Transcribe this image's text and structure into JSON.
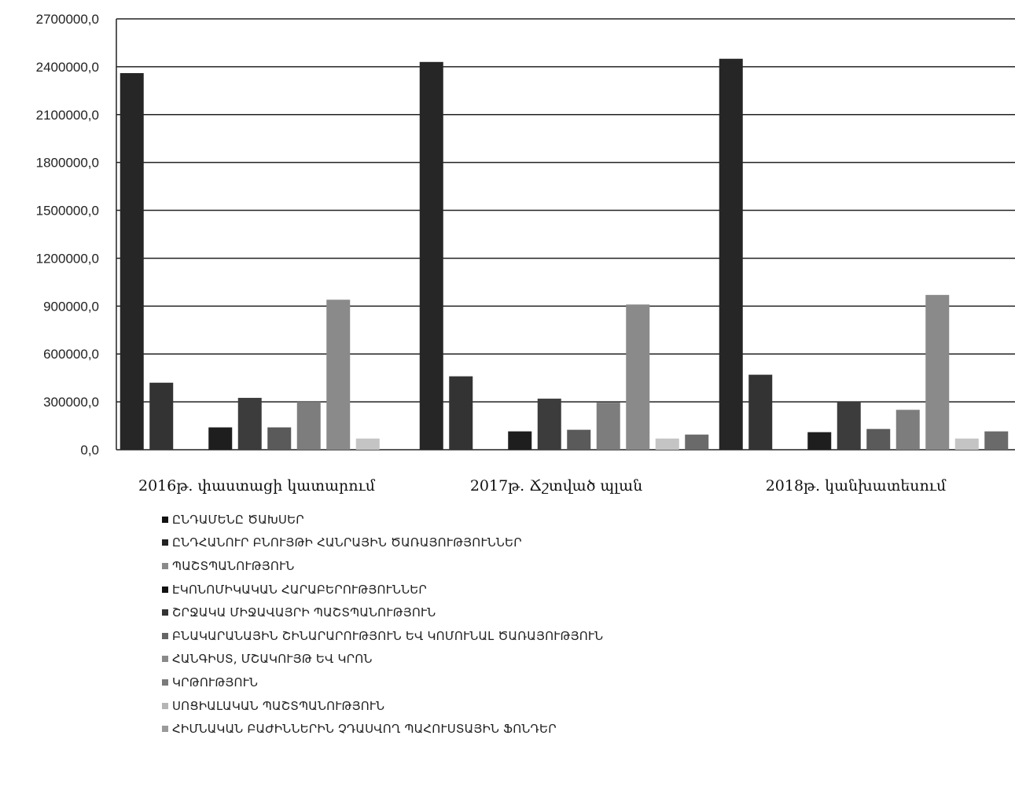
{
  "chart_data": {
    "type": "bar",
    "categories": [
      "2016թ. փաստացի կատարում",
      "2017թ. Ճշտված պլան",
      "2018թ. կանխատեսում"
    ],
    "ylim": [
      0,
      2700000
    ],
    "yticks": [
      "0,0",
      "300000,0",
      "600000,0",
      "900000,0",
      "1200000,0",
      "1500000,0",
      "1800000,0",
      "2100000,0",
      "2400000,0",
      "2700000,0"
    ],
    "grid": true,
    "legend_position": "bottom",
    "series": [
      {
        "name": "ԸՆԴՀԱՆՈՒՐ ԲՆՈՒՅԹԻ ՀԱՆՐԱՅԻՆ ԾԱՌԱՅՈՒԹՅՈՒՆՆԵՐ",
        "color": "#262626",
        "values": [
          2360000,
          2430000,
          2450000
        ]
      },
      {
        "name": "ՊԱՇՏՊԱՆՈՒԹՅՈՒՆ",
        "color": "#333333",
        "values": [
          420000,
          460000,
          470000
        ]
      },
      {
        "name": "ԷԿՈՆՈՄԻԿԱԿԱՆ ՀԱՐԱԲԵՐՈՒԹՅՈՒՆՆԵՐ",
        "color": "#9a9a9a",
        "values": [
          0,
          0,
          0
        ]
      },
      {
        "name": "ՇՐՋԱԿԱ ՄԻՋԱՎԱՅՐԻ ՊԱՇՏՊԱՆՈՒԹՅՈՒՆ",
        "color": "#1e1e1e",
        "values": [
          140000,
          115000,
          110000
        ]
      },
      {
        "name": "ԲՆԱԿԱՐԱՆԱՅԻՆ ՇԻՆԱՐԱՐՈՒԹՅՈՒՆ ԵՎ ԿՈՄՈՒՆԱԼ ԾԱՌԱՅՈՒԹՅՈՒՆ",
        "color": "#3c3c3c",
        "values": [
          325000,
          320000,
          300000
        ]
      },
      {
        "name": "ՀԱՆԳԻՍՏ, ՄՇԱԿՈՒՅԹ ԵՎ ԿՐՈՆ",
        "color": "#5a5a5a",
        "values": [
          140000,
          125000,
          130000
        ]
      },
      {
        "name": "ԿՐԹՈՒԹՅՈՒՆ",
        "color": "#7d7d7d",
        "values": [
          300000,
          295000,
          250000
        ]
      },
      {
        "name": "ՍՈՑԻԱԼԱԿԱՆ ՊԱՇՏՊԱՆՈՒԹՅՈՒՆ",
        "color": "#8a8a8a",
        "values": [
          940000,
          910000,
          970000
        ]
      },
      {
        "name": "ՀԻՄՆԱԿԱՆ ԲԱԺԻՆՆԵՐԻՆ ՉԴԱՍՎՈՂ ՊԱՀՈՒՍՏԱՅԻՆ ՖՈՆԴԵՐ",
        "color": "#c4c4c4",
        "values": [
          70000,
          70000,
          70000
        ]
      },
      {
        "name": "",
        "color": "#6a6a6a",
        "values": [
          0,
          95000,
          115000
        ]
      }
    ],
    "legend_items": [
      {
        "name": "ԸՆԴԱՄԵՆԸ ԾԱԽՍԵՐ",
        "color": "#111111"
      },
      {
        "name": "ԸՆԴՀԱՆՈՒՐ ԲՆՈՒՅԹԻ ՀԱՆՐԱՅԻՆ ԾԱՌԱՅՈՒԹՅՈՒՆՆԵՐ",
        "color": "#222222"
      },
      {
        "name": "ՊԱՇՏՊԱՆՈՒԹՅՈՒՆ",
        "color": "#8a8a8a"
      },
      {
        "name": "ԷԿՈՆՈՄԻԿԱԿԱՆ ՀԱՐԱԲԵՐՈՒԹՅՈՒՆՆԵՐ",
        "color": "#111111"
      },
      {
        "name": "ՇՐՋԱԿԱ ՄԻՋԱՎԱՅՐԻ ՊԱՇՏՊԱՆՈՒԹՅՈՒՆ",
        "color": "#333333"
      },
      {
        "name": "ԲՆԱԿԱՐԱՆԱՅԻՆ ՇԻՆԱՐԱՐՈՒԹՅՈՒՆ ԵՎ ԿՈՄՈՒՆԱԼ ԾԱՌԱՅՈՒԹՅՈՒՆ",
        "color": "#666666"
      },
      {
        "name": "ՀԱՆԳԻՍՏ, ՄՇԱԿՈՒՅԹ ԵՎ ԿՐՈՆ",
        "color": "#8a8a8a"
      },
      {
        "name": "ԿՐԹՈՒԹՅՈՒՆ",
        "color": "#7a7a7a"
      },
      {
        "name": "ՍՈՑԻԱԼԱԿԱՆ ՊԱՇՏՊԱՆՈՒԹՅՈՒՆ",
        "color": "#b5b5b5"
      },
      {
        "name": "ՀԻՄՆԱԿԱՆ ԲԱԺԻՆՆԵՐԻՆ ՉԴԱՍՎՈՂ ՊԱՀՈՒՍՏԱՅԻՆ ՖՈՆԴԵՐ",
        "color": "#9a9a9a"
      }
    ]
  }
}
